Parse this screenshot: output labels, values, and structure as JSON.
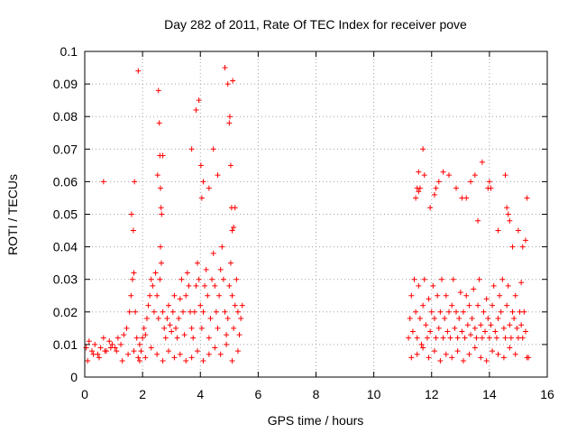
{
  "chart_data": {
    "type": "scatter",
    "title": "Day 282 of 2011, Rate Of TEC Index for receiver pove",
    "xlabel": "GPS time / hours",
    "ylabel": "ROTI / TECUs",
    "xlim": [
      0,
      16
    ],
    "ylim": [
      0,
      0.1
    ],
    "xticks": [
      "0",
      "2",
      "4",
      "6",
      "8",
      "10",
      "12",
      "14",
      "16"
    ],
    "yticks": [
      "0",
      "0.01",
      "0.02",
      "0.03",
      "0.04",
      "0.05",
      "0.06",
      "0.07",
      "0.08",
      "0.09",
      "0.1"
    ],
    "grid": true,
    "marker": "+",
    "color": "#ff0000",
    "series": [
      {
        "name": "ROTI",
        "x": [
          0.05,
          0.15,
          0.25,
          0.35,
          0.45,
          0.55,
          0.65,
          0.75,
          0.85,
          0.95,
          1.05,
          1.15,
          1.25,
          1.35,
          1.45,
          1.55,
          1.6,
          1.65,
          1.7,
          1.75,
          1.8,
          1.85,
          1.9,
          1.95,
          2.0,
          2.05,
          2.1,
          2.15,
          2.2,
          2.25,
          2.3,
          2.35,
          2.4,
          2.45,
          2.5,
          2.55,
          2.6,
          2.62,
          2.65,
          2.7,
          2.75,
          2.8,
          2.85,
          2.9,
          2.95,
          3.0,
          3.05,
          3.1,
          3.15,
          3.2,
          3.25,
          3.3,
          3.35,
          3.4,
          3.45,
          3.5,
          3.55,
          3.6,
          3.65,
          3.7,
          3.75,
          3.8,
          3.85,
          3.9,
          3.95,
          4.0,
          4.05,
          4.1,
          4.15,
          4.2,
          4.25,
          4.3,
          4.35,
          4.4,
          4.45,
          4.5,
          4.55,
          4.6,
          4.65,
          4.7,
          4.75,
          4.8,
          4.85,
          4.9,
          4.95,
          5.0,
          5.05,
          5.1,
          5.15,
          5.2,
          5.25,
          5.3,
          5.35,
          5.4,
          5.45,
          11.2,
          11.25,
          11.3,
          11.35,
          11.4,
          11.45,
          11.5,
          11.55,
          11.6,
          11.65,
          11.7,
          11.75,
          11.8,
          11.85,
          11.9,
          11.95,
          12.0,
          12.05,
          12.1,
          12.15,
          12.2,
          12.25,
          12.3,
          12.35,
          12.4,
          12.45,
          12.5,
          12.55,
          12.6,
          12.65,
          12.7,
          12.75,
          12.8,
          12.85,
          12.9,
          12.95,
          13.0,
          13.05,
          13.1,
          13.15,
          13.2,
          13.25,
          13.3,
          13.35,
          13.4,
          13.45,
          13.5,
          13.55,
          13.6,
          13.65,
          13.7,
          13.75,
          13.8,
          13.85,
          13.9,
          13.95,
          14.0,
          14.05,
          14.1,
          14.15,
          14.2,
          14.25,
          14.3,
          14.35,
          14.4,
          14.45,
          14.5,
          14.55,
          14.6,
          14.65,
          14.7,
          14.75,
          14.8,
          14.85,
          14.9,
          14.95,
          15.0,
          15.05,
          15.1,
          15.15,
          15.2,
          15.25,
          15.3,
          15.35,
          0.1,
          0.3,
          0.5,
          0.7,
          0.9,
          1.1,
          1.3,
          1.5,
          1.7,
          1.9,
          2.1,
          2.3,
          2.5,
          2.7,
          2.9,
          3.1,
          3.3,
          3.5,
          3.7,
          3.9,
          4.1,
          4.3,
          4.5,
          4.7,
          4.9,
          5.1,
          5.3,
          11.3,
          11.5,
          11.7,
          11.9,
          12.1,
          12.3,
          12.5,
          12.7,
          12.9,
          13.1,
          13.3,
          13.5,
          13.7,
          13.9,
          14.1,
          14.3,
          14.5,
          14.7,
          14.9,
          15.1,
          15.3,
          0.65,
          1.62,
          1.68,
          1.72,
          1.85,
          2.55,
          2.58,
          2.6,
          2.62,
          2.64,
          2.66,
          2.52,
          2.7,
          3.7,
          3.85,
          3.95,
          4.02,
          4.05,
          4.1,
          4.3,
          4.45,
          4.6,
          4.85,
          4.95,
          5.0,
          5.02,
          5.05,
          5.08,
          5.1,
          5.12,
          5.15,
          5.2,
          11.45,
          11.5,
          11.55,
          11.55,
          11.6,
          11.7,
          11.75,
          11.95,
          12.1,
          12.15,
          12.25,
          12.4,
          12.6,
          12.85,
          13.05,
          13.2,
          13.35,
          13.5,
          13.6,
          13.75,
          13.95,
          14.0,
          14.05,
          14.3,
          14.55,
          14.6,
          14.65,
          14.7,
          14.8,
          15.0,
          15.15,
          15.25
        ],
        "y": [
          0.009,
          0.011,
          0.008,
          0.01,
          0.007,
          0.009,
          0.012,
          0.008,
          0.011,
          0.01,
          0.009,
          0.012,
          0.01,
          0.013,
          0.015,
          0.02,
          0.025,
          0.03,
          0.032,
          0.02,
          0.012,
          0.006,
          0.005,
          0.008,
          0.012,
          0.015,
          0.013,
          0.018,
          0.022,
          0.025,
          0.03,
          0.028,
          0.02,
          0.032,
          0.025,
          0.018,
          0.03,
          0.04,
          0.035,
          0.02,
          0.015,
          0.012,
          0.018,
          0.022,
          0.016,
          0.014,
          0.02,
          0.025,
          0.015,
          0.012,
          0.018,
          0.024,
          0.03,
          0.02,
          0.013,
          0.025,
          0.032,
          0.028,
          0.02,
          0.015,
          0.012,
          0.02,
          0.028,
          0.035,
          0.03,
          0.022,
          0.015,
          0.02,
          0.028,
          0.033,
          0.025,
          0.012,
          0.018,
          0.03,
          0.038,
          0.028,
          0.02,
          0.015,
          0.025,
          0.033,
          0.04,
          0.03,
          0.02,
          0.013,
          0.018,
          0.028,
          0.035,
          0.025,
          0.015,
          0.022,
          0.03,
          0.02,
          0.013,
          0.018,
          0.022,
          0.012,
          0.018,
          0.025,
          0.014,
          0.03,
          0.02,
          0.012,
          0.028,
          0.018,
          0.01,
          0.022,
          0.03,
          0.016,
          0.012,
          0.024,
          0.014,
          0.02,
          0.028,
          0.018,
          0.012,
          0.025,
          0.015,
          0.02,
          0.03,
          0.012,
          0.018,
          0.025,
          0.014,
          0.02,
          0.012,
          0.022,
          0.03,
          0.015,
          0.02,
          0.012,
          0.018,
          0.026,
          0.014,
          0.02,
          0.012,
          0.025,
          0.016,
          0.022,
          0.013,
          0.018,
          0.027,
          0.015,
          0.012,
          0.022,
          0.03,
          0.016,
          0.012,
          0.02,
          0.014,
          0.024,
          0.018,
          0.012,
          0.016,
          0.022,
          0.028,
          0.014,
          0.012,
          0.018,
          0.025,
          0.02,
          0.03,
          0.015,
          0.012,
          0.022,
          0.028,
          0.016,
          0.012,
          0.02,
          0.018,
          0.025,
          0.015,
          0.012,
          0.02,
          0.016,
          0.012,
          0.02,
          0.014,
          0.006,
          0.006,
          0.005,
          0.007,
          0.006,
          0.008,
          0.009,
          0.008,
          0.005,
          0.007,
          0.008,
          0.01,
          0.006,
          0.009,
          0.007,
          0.005,
          0.008,
          0.006,
          0.007,
          0.005,
          0.006,
          0.008,
          0.005,
          0.007,
          0.009,
          0.007,
          0.01,
          0.005,
          0.008,
          0.006,
          0.007,
          0.009,
          0.006,
          0.008,
          0.005,
          0.007,
          0.006,
          0.008,
          0.005,
          0.007,
          0.009,
          0.006,
          0.005,
          0.008,
          0.007,
          0.006,
          0.009,
          0.007,
          0.029,
          0.055,
          0.06,
          0.05,
          0.045,
          0.06,
          0.094,
          0.088,
          0.078,
          0.068,
          0.058,
          0.052,
          0.05,
          0.062,
          0.068,
          0.07,
          0.082,
          0.085,
          0.065,
          0.055,
          0.06,
          0.058,
          0.07,
          0.062,
          0.095,
          0.09,
          0.078,
          0.08,
          0.065,
          0.052,
          0.045,
          0.091,
          0.046,
          0.052,
          0.055,
          0.058,
          0.057,
          0.063,
          0.058,
          0.07,
          0.062,
          0.052,
          0.056,
          0.058,
          0.06,
          0.063,
          0.062,
          0.058,
          0.055,
          0.055,
          0.06,
          0.062,
          0.048,
          0.066,
          0.058,
          0.06,
          0.058,
          0.045,
          0.062,
          0.052,
          0.05,
          0.048,
          0.04,
          0.045,
          0.04,
          0.042
        ]
      }
    ]
  }
}
